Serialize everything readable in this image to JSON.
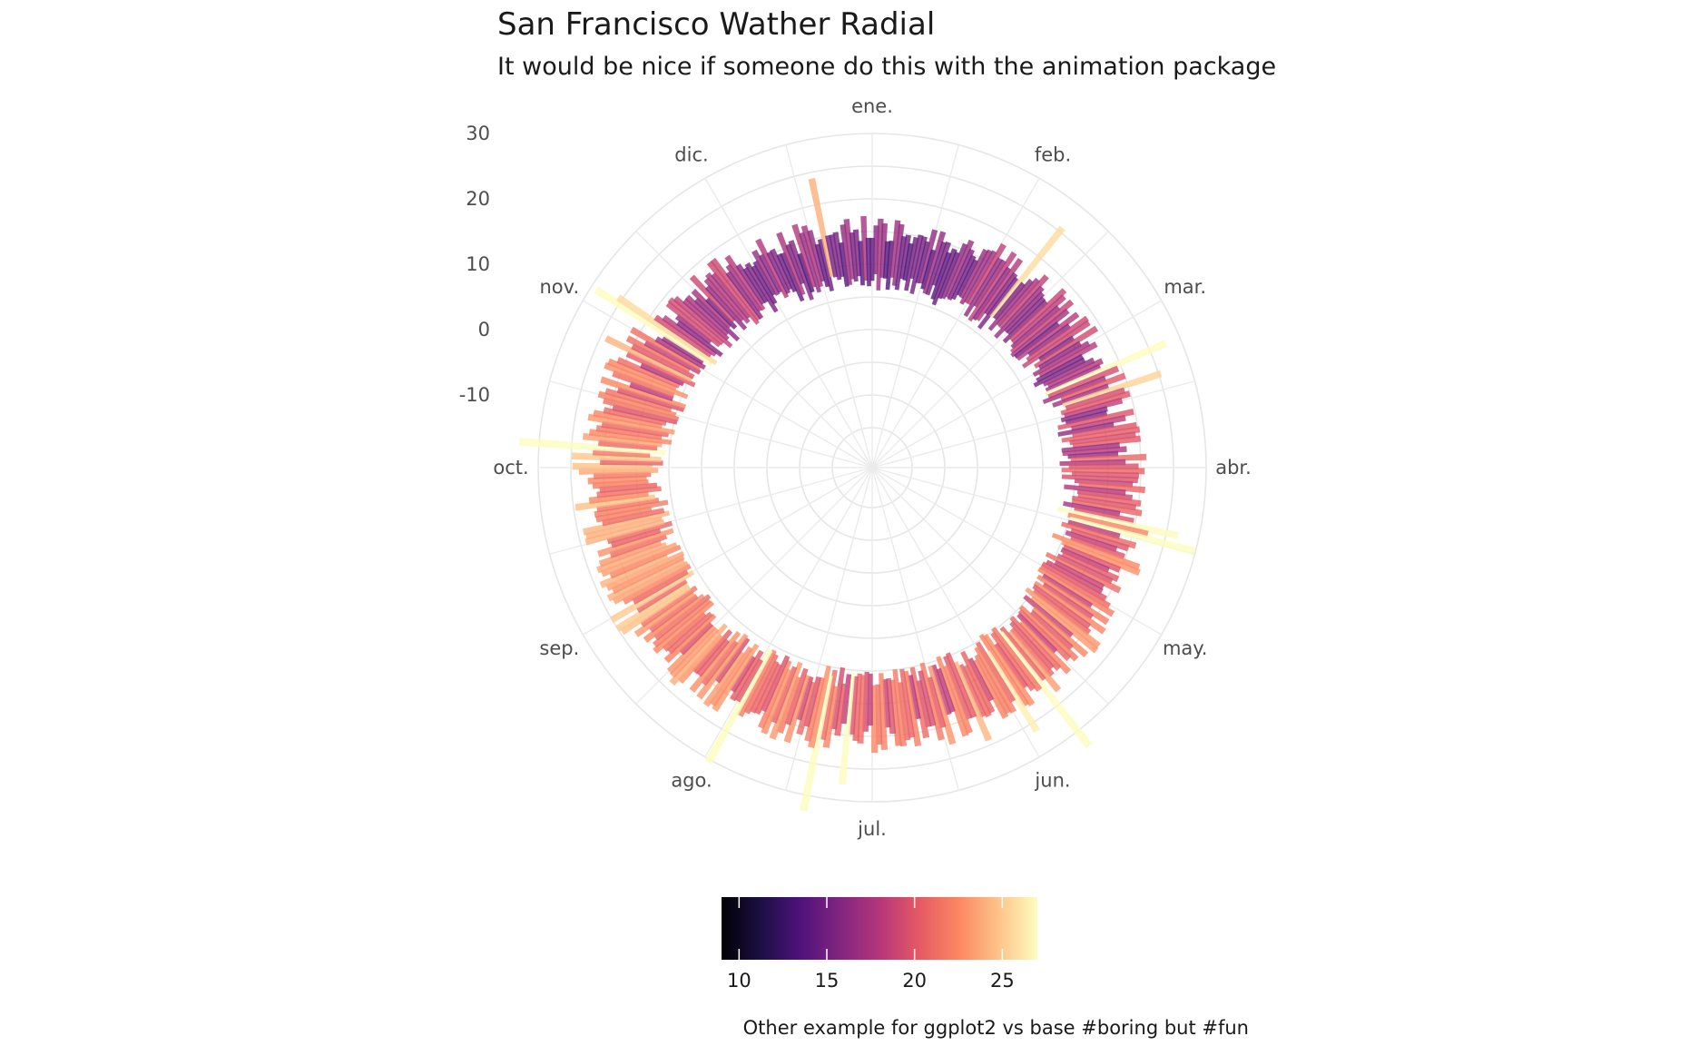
{
  "chart_data": {
    "type": "bar",
    "coord": "polar",
    "title": "San Francisco Wather Radial",
    "subtitle": "It would be nice if someone do this with the animation package",
    "caption": "Other example for ggplot2 vs base #boring but #fun",
    "theme": "minimal",
    "grid": true,
    "legend_position": "bottom",
    "x_ticks": [
      "ene.",
      "feb.",
      "mar.",
      "abr.",
      "may.",
      "jun.",
      "jul.",
      "ago.",
      "sep.",
      "oct.",
      "nov.",
      "dic."
    ],
    "y_ticks": [
      "-10",
      "0",
      "10",
      "20",
      "30"
    ],
    "ylim": [
      -20,
      30
    ],
    "color_scale": {
      "palette": "magma",
      "limits": [
        9,
        27
      ],
      "breaks": [
        10,
        15,
        20,
        25
      ],
      "labels": [
        "10",
        "15",
        "20",
        "25"
      ],
      "stops": [
        "#000004",
        "#1c1044",
        "#4f127b",
        "#812581",
        "#b5367a",
        "#e55964",
        "#fb8761",
        "#fec287",
        "#fcfdbf"
      ]
    },
    "monthly_pattern": {
      "months": [
        "ene.",
        "feb.",
        "mar.",
        "abr.",
        "may.",
        "jun.",
        "jul.",
        "ago.",
        "sep.",
        "oct.",
        "nov.",
        "dic."
      ],
      "min_temp": [
        7,
        7,
        8,
        9,
        10,
        11,
        11,
        12,
        12,
        12,
        9,
        8
      ],
      "max_temp": [
        14,
        15,
        16,
        18,
        20,
        20,
        19,
        20,
        22,
        22,
        18,
        15
      ]
    }
  }
}
